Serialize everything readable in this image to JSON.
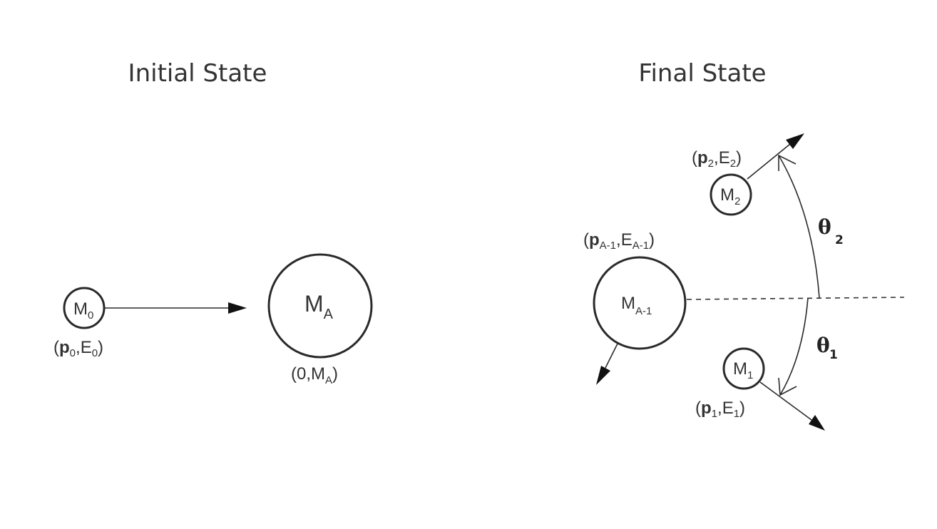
{
  "initial": {
    "title": "Initial State",
    "projectile": {
      "symbol": "M",
      "sub": "0",
      "label": {
        "p": "p",
        "p_sub": "0",
        "e": "E",
        "e_sub": "0"
      }
    },
    "target": {
      "symbol": "M",
      "sub": "A",
      "label": {
        "zero": "0",
        "m": "M",
        "m_sub": "A"
      }
    }
  },
  "final": {
    "title": "Final State",
    "residual": {
      "symbol": "M",
      "sub": "A-1",
      "label": {
        "p": "p",
        "p_sub": "A-1",
        "e": "E",
        "e_sub": "A-1"
      }
    },
    "particle1": {
      "symbol": "M",
      "sub": "1",
      "label": {
        "p": "p",
        "p_sub": "1",
        "e": "E",
        "e_sub": "1"
      }
    },
    "particle2": {
      "symbol": "M",
      "sub": "2",
      "label": {
        "p": "p",
        "p_sub": "2",
        "e": "E",
        "e_sub": "2"
      }
    },
    "theta1": {
      "symbol": "θ",
      "sub": "1"
    },
    "theta2": {
      "symbol": "θ",
      "sub": "2"
    }
  }
}
